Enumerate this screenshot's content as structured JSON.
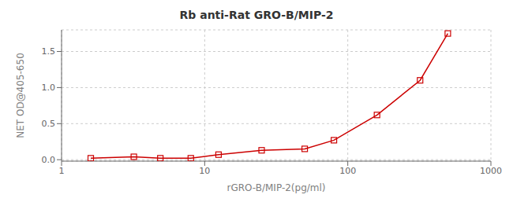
{
  "chart_data": {
    "type": "line",
    "title": "Rb anti-Rat GRO-B/MIP-2",
    "xlabel": "rGRO-B/MIP-2(pg/ml)",
    "ylabel": "NET OD@405-650",
    "x": [
      1.6,
      3.2,
      4.9,
      8.0,
      12.5,
      25.0,
      50.0,
      80.0,
      160.0,
      320.0,
      500.0
    ],
    "values": [
      0.02,
      0.04,
      0.02,
      0.02,
      0.07,
      0.13,
      0.15,
      0.27,
      0.62,
      1.1,
      1.75
    ],
    "color": "#cc0000",
    "marker": "square",
    "line_style": "solid",
    "log": "x",
    "grid": true,
    "xlim": [
      1,
      1000
    ],
    "ylim": [
      -0.02,
      1.8
    ],
    "xticks": [
      1,
      10,
      100,
      1000
    ],
    "yticks": [
      {
        "value": 0.0,
        "label": "0.0"
      },
      {
        "value": 0.5,
        "label": "0.5"
      },
      {
        "value": 1.0,
        "label": "1.0"
      },
      {
        "value": 1.5,
        "label": "1.5"
      }
    ]
  }
}
